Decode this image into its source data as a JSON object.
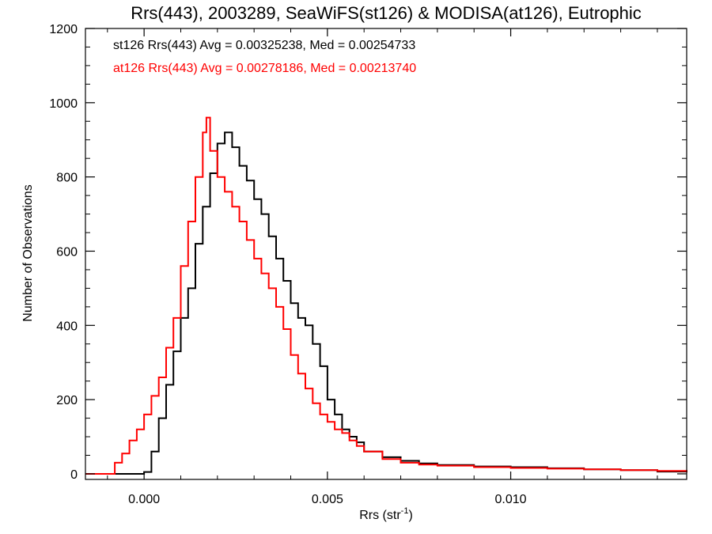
{
  "chart_data": {
    "type": "line",
    "title": "Rrs(443), 2003289, SeaWiFS(st126) & MODISA(at126), Eutrophic",
    "xlabel_main": "Rrs (str",
    "xlabel_sup": "-1",
    "xlabel_close": ")",
    "ylabel": "Number of Observations",
    "xlim": [
      -0.0016,
      0.0148
    ],
    "ylim": [
      -15,
      1200
    ],
    "x_ticks": [
      0.0,
      0.005,
      0.01
    ],
    "x_tick_labels": [
      "0.000",
      "0.005",
      "0.010"
    ],
    "y_ticks": [
      0,
      200,
      400,
      600,
      800,
      1000,
      1200
    ],
    "y_tick_labels": [
      "0",
      "200",
      "400",
      "600",
      "800",
      "1000",
      "1200"
    ],
    "grid": false,
    "annotations": [
      {
        "text": "st126 Rrs(443) Avg = 0.00325238, Med = 0.00254733",
        "color": "#000000"
      },
      {
        "text": "at126 Rrs(443) Avg = 0.00278186, Med = 0.00213740",
        "color": "#ff0000"
      }
    ],
    "series": [
      {
        "color": "#000000",
        "points": [
          [
            -0.0016,
            0
          ],
          [
            -0.0001,
            0
          ],
          [
            0.0,
            5
          ],
          [
            0.0002,
            60
          ],
          [
            0.0004,
            150
          ],
          [
            0.0006,
            240
          ],
          [
            0.0008,
            330
          ],
          [
            0.001,
            420
          ],
          [
            0.0012,
            500
          ],
          [
            0.0014,
            620
          ],
          [
            0.0016,
            720
          ],
          [
            0.0018,
            810
          ],
          [
            0.002,
            890
          ],
          [
            0.0022,
            920
          ],
          [
            0.0024,
            880
          ],
          [
            0.0026,
            830
          ],
          [
            0.0028,
            790
          ],
          [
            0.003,
            740
          ],
          [
            0.0032,
            700
          ],
          [
            0.0034,
            640
          ],
          [
            0.0036,
            580
          ],
          [
            0.0038,
            520
          ],
          [
            0.004,
            460
          ],
          [
            0.0042,
            420
          ],
          [
            0.0044,
            400
          ],
          [
            0.0046,
            350
          ],
          [
            0.0048,
            290
          ],
          [
            0.005,
            200
          ],
          [
            0.0052,
            160
          ],
          [
            0.0054,
            120
          ],
          [
            0.0056,
            100
          ],
          [
            0.0058,
            85
          ],
          [
            0.006,
            60
          ],
          [
            0.0065,
            45
          ],
          [
            0.007,
            35
          ],
          [
            0.0075,
            28
          ],
          [
            0.008,
            24
          ],
          [
            0.009,
            20
          ],
          [
            0.01,
            18
          ],
          [
            0.011,
            15
          ],
          [
            0.012,
            12
          ],
          [
            0.013,
            10
          ],
          [
            0.014,
            6
          ],
          [
            0.0148,
            4
          ]
        ]
      },
      {
        "color": "#ff0000",
        "points": [
          [
            -0.0016,
            0
          ],
          [
            -0.001,
            0
          ],
          [
            -0.0008,
            30
          ],
          [
            -0.0006,
            55
          ],
          [
            -0.0004,
            90
          ],
          [
            -0.0002,
            120
          ],
          [
            0.0,
            160
          ],
          [
            0.0002,
            210
          ],
          [
            0.0004,
            260
          ],
          [
            0.0006,
            340
          ],
          [
            0.0008,
            420
          ],
          [
            0.001,
            560
          ],
          [
            0.0012,
            680
          ],
          [
            0.0014,
            800
          ],
          [
            0.0016,
            920
          ],
          [
            0.0017,
            960
          ],
          [
            0.0018,
            870
          ],
          [
            0.002,
            800
          ],
          [
            0.0022,
            760
          ],
          [
            0.0024,
            720
          ],
          [
            0.0026,
            680
          ],
          [
            0.0028,
            630
          ],
          [
            0.003,
            580
          ],
          [
            0.0032,
            540
          ],
          [
            0.0034,
            500
          ],
          [
            0.0036,
            450
          ],
          [
            0.0038,
            390
          ],
          [
            0.004,
            320
          ],
          [
            0.0042,
            270
          ],
          [
            0.0044,
            230
          ],
          [
            0.0046,
            190
          ],
          [
            0.0048,
            160
          ],
          [
            0.005,
            140
          ],
          [
            0.0052,
            120
          ],
          [
            0.0054,
            110
          ],
          [
            0.0056,
            90
          ],
          [
            0.0058,
            75
          ],
          [
            0.006,
            60
          ],
          [
            0.0065,
            40
          ],
          [
            0.007,
            30
          ],
          [
            0.0075,
            25
          ],
          [
            0.008,
            22
          ],
          [
            0.009,
            18
          ],
          [
            0.01,
            16
          ],
          [
            0.011,
            14
          ],
          [
            0.012,
            12
          ],
          [
            0.013,
            10
          ],
          [
            0.014,
            8
          ],
          [
            0.0148,
            5
          ]
        ]
      }
    ]
  }
}
